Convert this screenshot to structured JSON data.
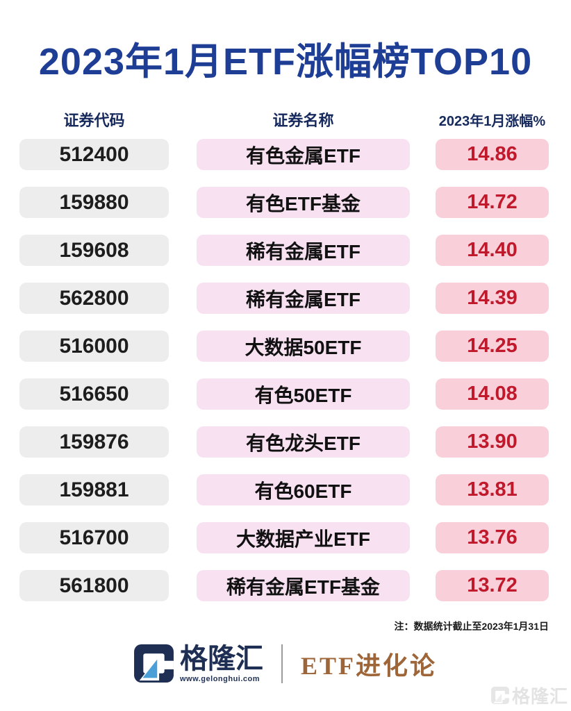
{
  "title": "2023年1月ETF涨幅榜TOP10",
  "chart_data": {
    "type": "table",
    "title": "2023年1月ETF涨幅榜TOP10",
    "columns": [
      "证券代码",
      "证券名称",
      "2023年1月涨幅%"
    ],
    "rows": [
      {
        "code": "512400",
        "name": "有色金属ETF",
        "pct": "14.86"
      },
      {
        "code": "159880",
        "name": "有色ETF基金",
        "pct": "14.72"
      },
      {
        "code": "159608",
        "name": "稀有金属ETF",
        "pct": "14.40"
      },
      {
        "code": "562800",
        "name": "稀有金属ETF",
        "pct": "14.39"
      },
      {
        "code": "516000",
        "name": "大数据50ETF",
        "pct": "14.25"
      },
      {
        "code": "516650",
        "name": "有色50ETF",
        "pct": "14.08"
      },
      {
        "code": "159876",
        "name": "有色龙头ETF",
        "pct": "13.90"
      },
      {
        "code": "159881",
        "name": "有色60ETF",
        "pct": "13.81"
      },
      {
        "code": "516700",
        "name": "大数据产业ETF",
        "pct": "13.76"
      },
      {
        "code": "561800",
        "name": "稀有金属ETF基金",
        "pct": "13.72"
      }
    ]
  },
  "note": "注：数据统计截止至2023年1月31日",
  "footer": {
    "brand_name": "格隆汇",
    "brand_site": "www.gelonghui.com",
    "series_name": "ETF进化论",
    "watermark": "格隆汇"
  },
  "colors": {
    "title_blue": "#1e3e96",
    "header_navy": "#16295c",
    "code_pill_bg": "#ededed",
    "name_pill_bg": "#f8e2f2",
    "pct_pill_bg": "#f9cfda",
    "pct_red": "#c0192c",
    "logo_navy": "#1f2f54",
    "logo_blue": "#4a9fd8",
    "series_brown": "#9e6638"
  }
}
